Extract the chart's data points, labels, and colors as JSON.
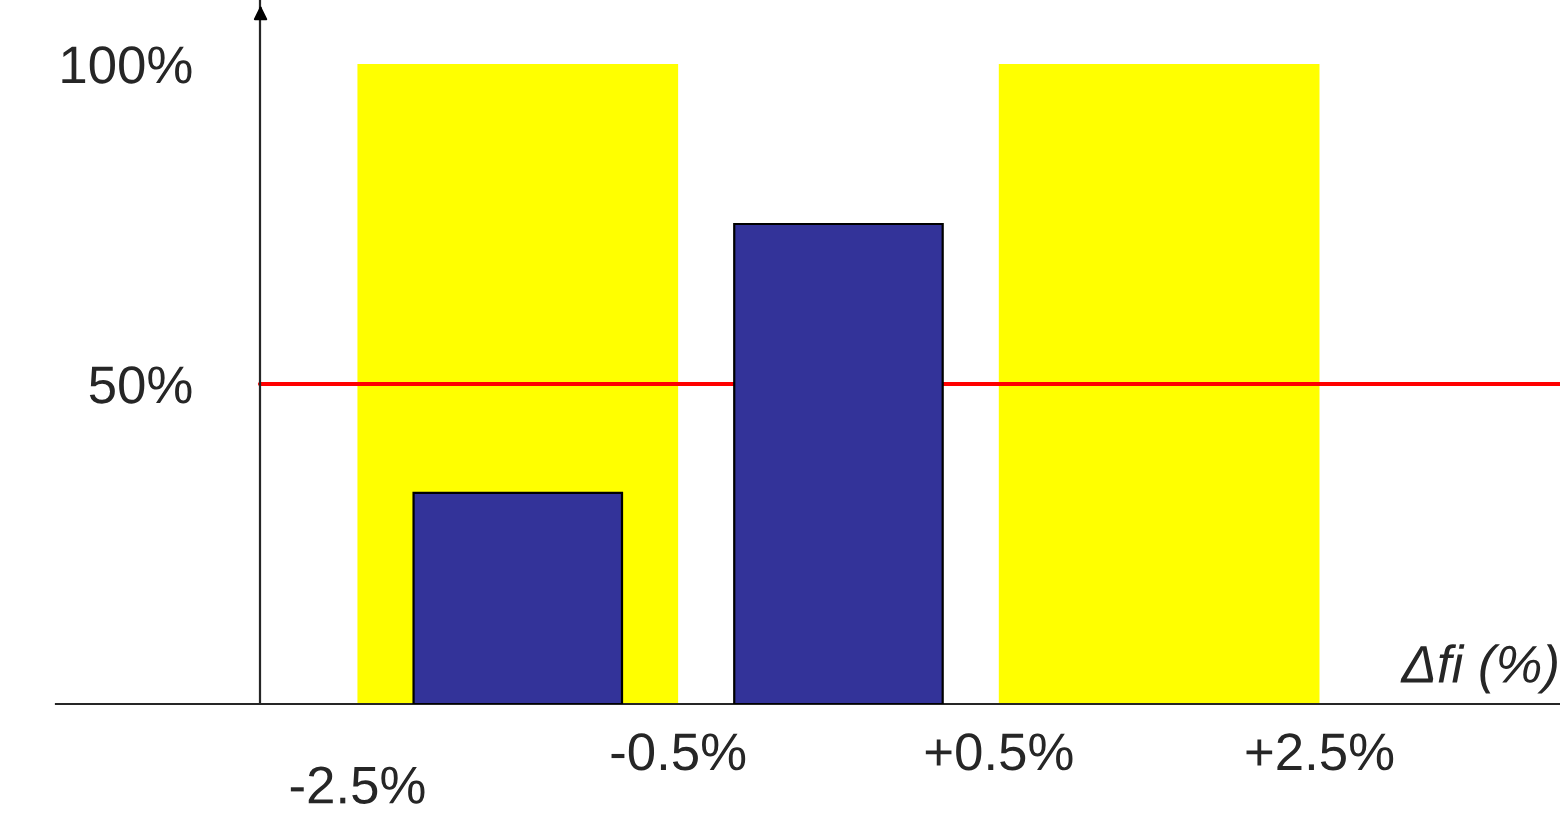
{
  "chart_data": {
    "type": "bar",
    "xlabel": "Δfi (%)",
    "categories": [
      null,
      null,
      null
    ],
    "series": [
      {
        "color": "#ffff00",
        "values": [
          100,
          null,
          100
        ]
      },
      {
        "color": "#333399",
        "values": [
          33,
          75,
          null
        ]
      }
    ],
    "ylim": [
      0,
      110
    ],
    "yticks": [
      {
        "value": 50,
        "label": "50%"
      },
      {
        "value": 100,
        "label": "100%"
      }
    ],
    "annotations": [
      "-2.5%",
      "-0.5%",
      "+0.5%",
      "+2.5%"
    ],
    "ref_lines": [
      {
        "axis": "y",
        "value": 50,
        "color": "#ff0000"
      }
    ],
    "grid": false,
    "legend": false
  }
}
